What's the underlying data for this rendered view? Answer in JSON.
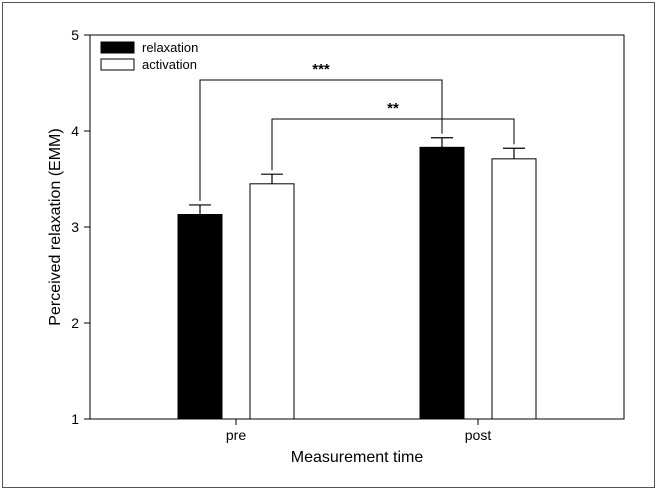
{
  "chart_data": {
    "type": "bar",
    "title": "",
    "xlabel": "Measurement time",
    "ylabel": "Perceived relaxation (EMM)",
    "categories": [
      "pre",
      "post"
    ],
    "ylim": [
      1,
      5
    ],
    "yticks": [
      "1",
      "2",
      "3",
      "4",
      "5"
    ],
    "grid": false,
    "legend_position": "top-left",
    "series": [
      {
        "name": "relaxation",
        "values": [
          3.13,
          3.83
        ],
        "errors": [
          0.1,
          0.1
        ],
        "fill": "#000000"
      },
      {
        "name": "activation",
        "values": [
          3.45,
          3.71
        ],
        "errors": [
          0.1,
          0.11
        ],
        "fill": "#ffffff"
      }
    ],
    "annotations": [
      {
        "label": "***",
        "series": "relaxation",
        "from": "pre",
        "to": "post"
      },
      {
        "label": "**",
        "series": "activation",
        "from": "pre",
        "to": "post"
      }
    ]
  }
}
